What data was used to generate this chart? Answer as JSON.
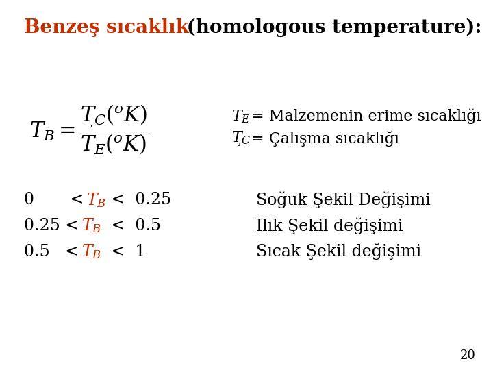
{
  "title_orange": "Benzeş sıcaklık",
  "title_black": " (homologous temperature):",
  "title_fontsize": 20,
  "orange_color": "#C03000",
  "black_color": "#000000",
  "bg_color": "#FFFFFF",
  "page_number": "20",
  "annot_fontsize": 16,
  "row_fontsize": 17,
  "formula_fontsize": 22
}
